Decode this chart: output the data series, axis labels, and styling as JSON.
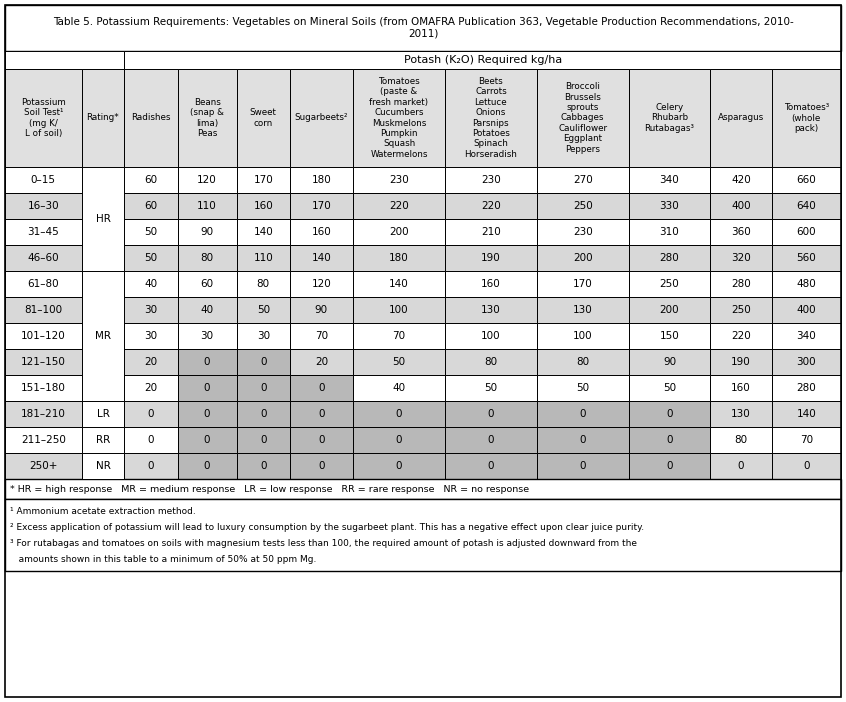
{
  "title_line1": "Table 5. Potassium Requirements: Vegetables on Mineral Soils (from OMAFRA Publication 363, Vegetable Production Recommendations, 2010-",
  "title_line2": "2011)",
  "potash_header": "Potash (K₂O) Required kg/ha",
  "col_headers": [
    "Potassium\nSoil Test¹\n(mg K/\nL of soil)",
    "Rating*",
    "Radishes",
    "Beans\n(snap &\nlima)\nPeas",
    "Sweet\ncorn",
    "Sugarbeets²",
    "Tomatoes\n(paste &\nfresh market)\nCucumbers\nMuskmelons\nPumpkin\nSquash\nWatermelons",
    "Beets\nCarrots\nLettuce\nOnions\nParsnips\nPotatoes\nSpinach\nHorseradish",
    "Broccoli\nBrussels\nsprouts\nCabbages\nCauliflower\nEggplant\nPeppers",
    "Celery\nRhubarb\nRutabagas³",
    "Asparagus",
    "Tomatoes³\n(whole\npack)"
  ],
  "soil_test_ranges": [
    "0–15",
    "16–30",
    "31–45",
    "46–60",
    "61–80",
    "81–100",
    "101–120",
    "121–150",
    "151–180",
    "181–210",
    "211–250",
    "250+"
  ],
  "ratings": [
    "",
    "HR",
    "",
    "",
    "",
    "MR",
    "",
    "",
    "",
    "LR",
    "RR",
    "NR"
  ],
  "data": [
    [
      60,
      120,
      170,
      180,
      230,
      230,
      270,
      340,
      420,
      660
    ],
    [
      60,
      110,
      160,
      170,
      220,
      220,
      250,
      330,
      400,
      640
    ],
    [
      50,
      90,
      140,
      160,
      200,
      210,
      230,
      310,
      360,
      600
    ],
    [
      50,
      80,
      110,
      140,
      180,
      190,
      200,
      280,
      320,
      560
    ],
    [
      40,
      60,
      80,
      120,
      140,
      160,
      170,
      250,
      280,
      480
    ],
    [
      30,
      40,
      50,
      90,
      100,
      130,
      130,
      200,
      250,
      400
    ],
    [
      30,
      30,
      30,
      70,
      70,
      100,
      100,
      150,
      220,
      340
    ],
    [
      20,
      0,
      0,
      20,
      50,
      80,
      80,
      90,
      190,
      300
    ],
    [
      20,
      0,
      0,
      0,
      40,
      50,
      50,
      50,
      160,
      280
    ],
    [
      0,
      0,
      0,
      0,
      0,
      0,
      0,
      0,
      130,
      140
    ],
    [
      0,
      0,
      0,
      0,
      0,
      0,
      0,
      0,
      80,
      70
    ],
    [
      0,
      0,
      0,
      0,
      0,
      0,
      0,
      0,
      0,
      0
    ]
  ],
  "rating_groups": [
    [
      "HR",
      0,
      3
    ],
    [
      "MR",
      4,
      8
    ],
    [
      "LR",
      9,
      9
    ],
    [
      "RR",
      10,
      10
    ],
    [
      "NR",
      11,
      11
    ]
  ],
  "footnote_legend": "* HR = high response   MR = medium response   LR = low response   RR = rare response   NR = no response",
  "footnotes": [
    "¹ Ammonium acetate extraction method.",
    "² Excess application of potassium will lead to luxury consumption by the sugarbeet plant. This has a negative effect upon clear juice purity.",
    "³ For rutabagas and tomatoes on soils with magnesium tests less than 100, the required amount of potash is adjusted downward from the",
    "   amounts shown in this table to a minimum of 50% at 50 ppm Mg."
  ],
  "col_widths_rel": [
    7.5,
    4.2,
    5.2,
    5.8,
    5.2,
    6.2,
    9.0,
    9.0,
    9.0,
    8.0,
    6.0,
    6.8
  ],
  "dark_gray_cols": [
    3,
    4,
    5,
    6,
    7,
    8,
    9
  ],
  "bg_white": "#FFFFFF",
  "bg_alt": "#D8D8D8",
  "bg_dark": "#B8B8B8",
  "bg_header": "#E0E0E0",
  "border_color": "#000000"
}
